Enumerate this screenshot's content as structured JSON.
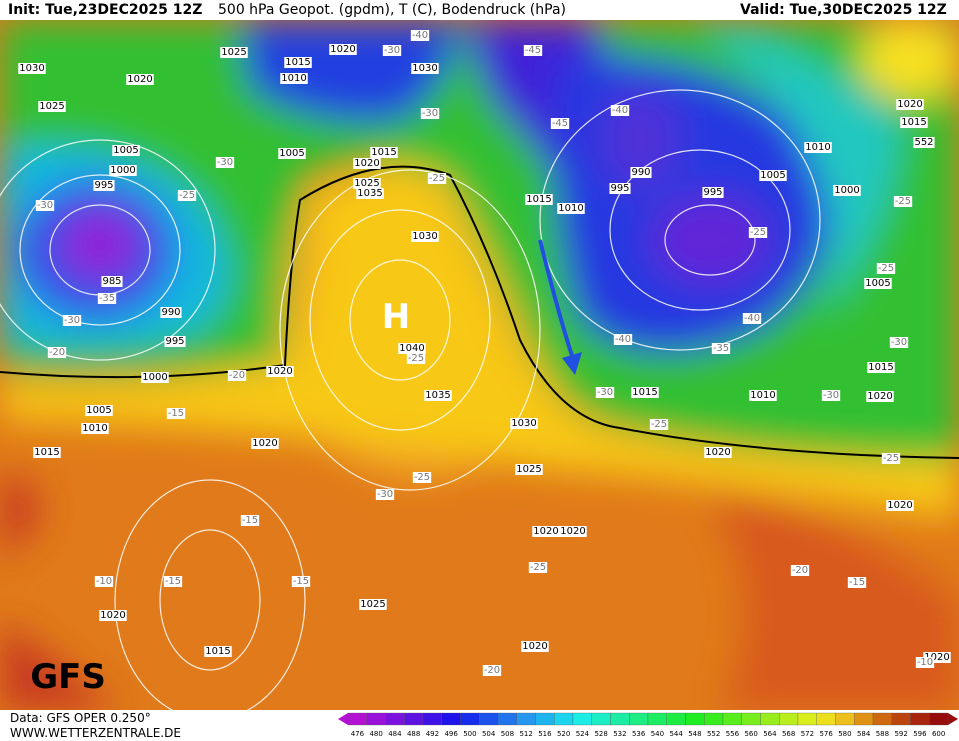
{
  "header": {
    "init": "Init: Tue,23DEC2025 12Z",
    "title": "500 hPa Geopot. (gpdm), T (C), Bodendruck (hPa)",
    "valid": "Valid: Tue,30DEC2025 12Z"
  },
  "map": {
    "high_label": "H",
    "model_label": "GFS",
    "isoline_label_552": "552",
    "pressure_labels": [
      "1025",
      "1020",
      "1030",
      "1015",
      "1010",
      "1020",
      "1025",
      "1030",
      "1005",
      "1000",
      "995",
      "1005",
      "1015",
      "1020",
      "1025",
      "1035",
      "1030",
      "985",
      "990",
      "995",
      "1000",
      "1020",
      "1040",
      "1035",
      "1005",
      "1010",
      "1015",
      "1020",
      "1030",
      "1025",
      "1020",
      "1020",
      "1025",
      "1015",
      "1020",
      "1020",
      "1015",
      "1010",
      "995",
      "990",
      "995",
      "1010",
      "1005",
      "1000",
      "1005",
      "1015",
      "1010",
      "1020",
      "1015",
      "1020",
      "1020",
      "1020",
      "1015",
      "1020"
    ],
    "temperature_labels": [
      "-40",
      "-30",
      "-45",
      "-40",
      "-45",
      "-30",
      "-30",
      "-25",
      "-25",
      "-30",
      "-35",
      "-30",
      "-20",
      "-25",
      "-25",
      "-25",
      "-40",
      "-40",
      "-35",
      "-30",
      "-30",
      "-30",
      "-25",
      "-20",
      "-15",
      "-25",
      "-25",
      "-25",
      "-30",
      "-15",
      "-15",
      "-10",
      "-15",
      "-25",
      "-20",
      "-15",
      "-20",
      "-10"
    ]
  },
  "colorbar": {
    "values": [
      476,
      480,
      484,
      488,
      492,
      496,
      500,
      504,
      508,
      512,
      516,
      520,
      524,
      528,
      532,
      536,
      540,
      544,
      548,
      552,
      556,
      560,
      564,
      568,
      572,
      576,
      580,
      584,
      588,
      592,
      596,
      600
    ]
  },
  "footer": {
    "data": "Data: GFS OPER 0.250°",
    "site": "WWW.WETTERZENTRALE.DE"
  }
}
